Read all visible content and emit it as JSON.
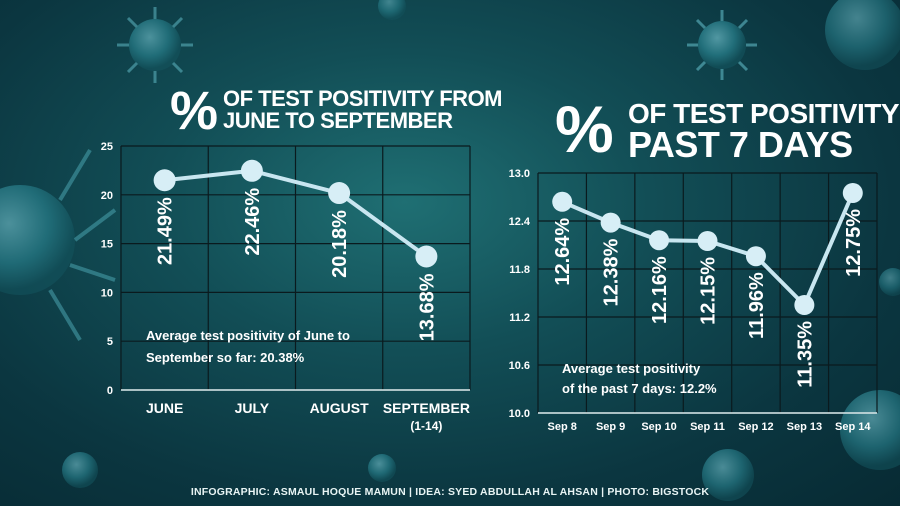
{
  "colors": {
    "line": "#c8e6f0",
    "point": "#d7eef6",
    "grid": "#0a1a1e",
    "text": "#ffffff"
  },
  "left_title": {
    "symbol": "%",
    "line1": "OF TEST POSITIVITY FROM",
    "line2": "JUNE TO SEPTEMBER"
  },
  "right_title": {
    "symbol": "%",
    "line1": "OF TEST POSITIVITY",
    "line2": "PAST 7 DAYS"
  },
  "credits": "INFOGRAPHIC: ASMAUL HOQUE MAMUN  |  IDEA: SYED ABDULLAH AL AHSAN  |  PHOTO: BIGSTOCK",
  "chart_data": [
    {
      "type": "line",
      "categories": [
        "JUNE",
        "JULY",
        "AUGUST",
        "SEPTEMBER"
      ],
      "category_sublabels": [
        "",
        "",
        "",
        "(1-14)"
      ],
      "values": [
        21.49,
        22.46,
        20.18,
        13.68
      ],
      "data_labels": [
        "21.49%",
        "22.46%",
        "20.18%",
        "13.68%"
      ],
      "ylim": [
        0,
        25
      ],
      "yticks": [
        0,
        5,
        10,
        15,
        20,
        25
      ],
      "ytick_labels": [
        "0",
        "5",
        "10",
        "15",
        "20",
        "25"
      ],
      "grid": true,
      "annotation_lines": [
        "Average test positivity of June to",
        "September so far: 20.38%"
      ]
    },
    {
      "type": "line",
      "categories": [
        "Sep 8",
        "Sep 9",
        "Sep 10",
        "Sep 11",
        "Sep 12",
        "Sep 13",
        "Sep 14"
      ],
      "values": [
        12.64,
        12.38,
        12.16,
        12.15,
        11.96,
        11.35,
        12.75
      ],
      "data_labels": [
        "12.64%",
        "12.38%",
        "12.16%",
        "12.15%",
        "11.96%",
        "11.35%",
        "12.75%"
      ],
      "ylim": [
        10.0,
        13.0
      ],
      "yticks": [
        10.0,
        10.6,
        11.2,
        11.8,
        12.4,
        13.0
      ],
      "ytick_labels": [
        "10.0",
        "10.6",
        "11.2",
        "11.8",
        "12.4",
        "13.0"
      ],
      "grid": true,
      "annotation_lines": [
        "Average test positivity",
        "of the past 7 days: 12.2%"
      ]
    }
  ]
}
